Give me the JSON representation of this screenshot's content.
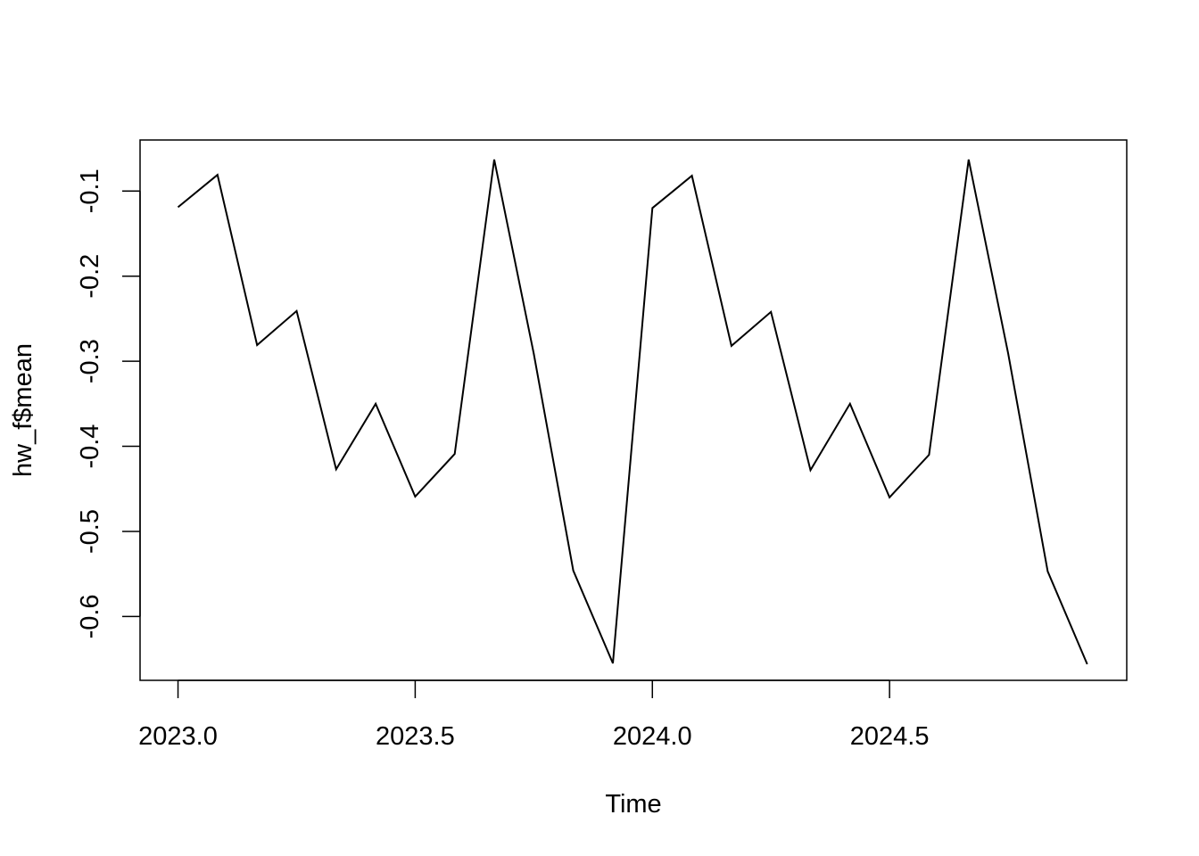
{
  "chart_data": {
    "type": "line",
    "title": "",
    "xlabel": "Time",
    "ylabel": "hw_f$mean",
    "xlim": [
      2022.92,
      2025.0
    ],
    "ylim": [
      -0.675,
      -0.04
    ],
    "x_ticks": [
      2023.0,
      2023.5,
      2024.0,
      2024.5
    ],
    "x_tick_labels": [
      "2023.0",
      "2023.5",
      "2024.0",
      "2024.5"
    ],
    "y_ticks": [
      -0.1,
      -0.2,
      -0.3,
      -0.4,
      -0.5,
      -0.6
    ],
    "y_tick_labels": [
      "-0.1",
      "-0.2",
      "-0.3",
      "-0.4",
      "-0.5",
      "-0.6"
    ],
    "grid": false,
    "legend": "none",
    "series": [
      {
        "x": [
          2023.0,
          2023.0833,
          2023.1667,
          2023.25,
          2023.3333,
          2023.4167,
          2023.5,
          2023.5833,
          2023.6667,
          2023.75,
          2023.8333,
          2023.9167,
          2024.0,
          2024.0833,
          2024.1667,
          2024.25,
          2024.3333,
          2024.4167,
          2024.5,
          2024.5833,
          2024.6667,
          2024.75,
          2024.8333,
          2024.9167
        ],
        "values": [
          -0.119,
          -0.081,
          -0.281,
          -0.241,
          -0.427,
          -0.35,
          -0.459,
          -0.409,
          -0.063,
          -0.291,
          -0.546,
          -0.655,
          -0.12,
          -0.082,
          -0.282,
          -0.242,
          -0.428,
          -0.35,
          -0.46,
          -0.41,
          -0.063,
          -0.291,
          -0.547,
          -0.656
        ]
      }
    ]
  }
}
